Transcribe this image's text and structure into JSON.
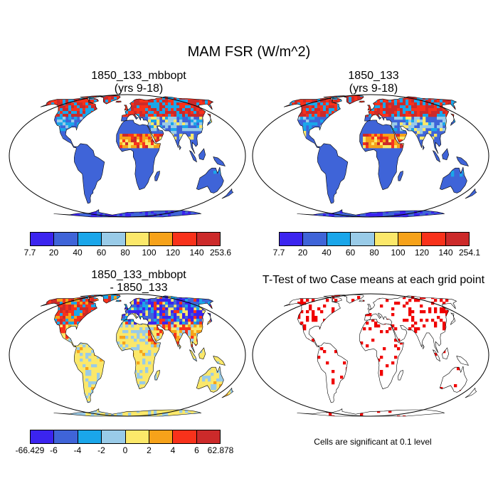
{
  "title": "MAM FSR (W/m^2)",
  "panels": [
    {
      "title_line1": "1850_133_mbbopt",
      "title_line2": "(yrs 9-18)"
    },
    {
      "title_line1": "1850_133",
      "title_line2": "(yrs 9-18)"
    },
    {
      "title_line1": "1850_133_mbbopt",
      "title_line2": "- 1850_133"
    },
    {
      "title_line1": "T-Test of two Case means at each grid point",
      "title_line2": ""
    }
  ],
  "colorbar_abs_colors": [
    "#3b24ef",
    "#3f64d8",
    "#1aa6ea",
    "#99cbe8",
    "#fbe86a",
    "#f6a21a",
    "#f8321b",
    "#cc2a2a"
  ],
  "colorbar_diff_colors": [
    "#3b24ef",
    "#3f64d8",
    "#1aa6ea",
    "#99cbe8",
    "#fbe86a",
    "#f6a21a",
    "#f8321b",
    "#cc2a2a"
  ],
  "colorbar1_ticks": [
    "7.7",
    "20",
    "40",
    "60",
    "80",
    "100",
    "120",
    "140",
    "253.6"
  ],
  "colorbar2_ticks": [
    "7.7",
    "20",
    "40",
    "60",
    "80",
    "100",
    "120",
    "140",
    "254.1"
  ],
  "colorbar3_ticks": [
    "-66.429",
    "-6",
    "-4",
    "-2",
    "0",
    "2",
    "4",
    "6",
    "62.878"
  ],
  "significance_note": "Cells are significant at 0.1 level",
  "significance_color": "#f00000"
}
